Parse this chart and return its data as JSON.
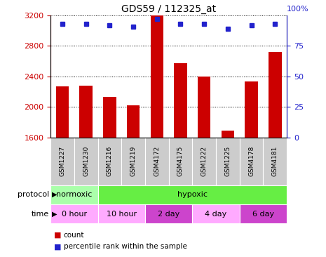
{
  "title": "GDS59 / 112325_at",
  "samples": [
    "GSM1227",
    "GSM1230",
    "GSM1216",
    "GSM1219",
    "GSM4172",
    "GSM4175",
    "GSM1222",
    "GSM1225",
    "GSM4178",
    "GSM4181"
  ],
  "counts": [
    2270,
    2275,
    2130,
    2020,
    3200,
    2570,
    2400,
    1690,
    2330,
    2720
  ],
  "percentile_ranks": [
    93,
    93,
    92,
    91,
    97,
    93,
    93,
    89,
    92,
    93
  ],
  "ylim_left": [
    1600,
    3200
  ],
  "ylim_right": [
    0,
    100
  ],
  "yticks_left": [
    1600,
    2000,
    2400,
    2800,
    3200
  ],
  "yticks_right": [
    0,
    25,
    50,
    75,
    100
  ],
  "bar_color": "#cc0000",
  "dot_color": "#2222cc",
  "protocol_row": [
    {
      "label": "normoxic",
      "start": 0,
      "end": 2,
      "color": "#aaffaa"
    },
    {
      "label": "hypoxic",
      "start": 2,
      "end": 10,
      "color": "#66ee44"
    }
  ],
  "time_row": [
    {
      "label": "0 hour",
      "start": 0,
      "end": 2,
      "color": "#ffaaff"
    },
    {
      "label": "10 hour",
      "start": 2,
      "end": 4,
      "color": "#ffaaff"
    },
    {
      "label": "2 day",
      "start": 4,
      "end": 6,
      "color": "#cc44cc"
    },
    {
      "label": "4 day",
      "start": 6,
      "end": 8,
      "color": "#ffaaff"
    },
    {
      "label": "6 day",
      "start": 8,
      "end": 10,
      "color": "#cc44cc"
    }
  ],
  "bar_width": 0.55,
  "ylabel_left_color": "#cc0000",
  "ylabel_right_color": "#2222cc",
  "legend_items": [
    {
      "label": "count",
      "color": "#cc0000"
    },
    {
      "label": "percentile rank within the sample",
      "color": "#2222cc"
    }
  ]
}
